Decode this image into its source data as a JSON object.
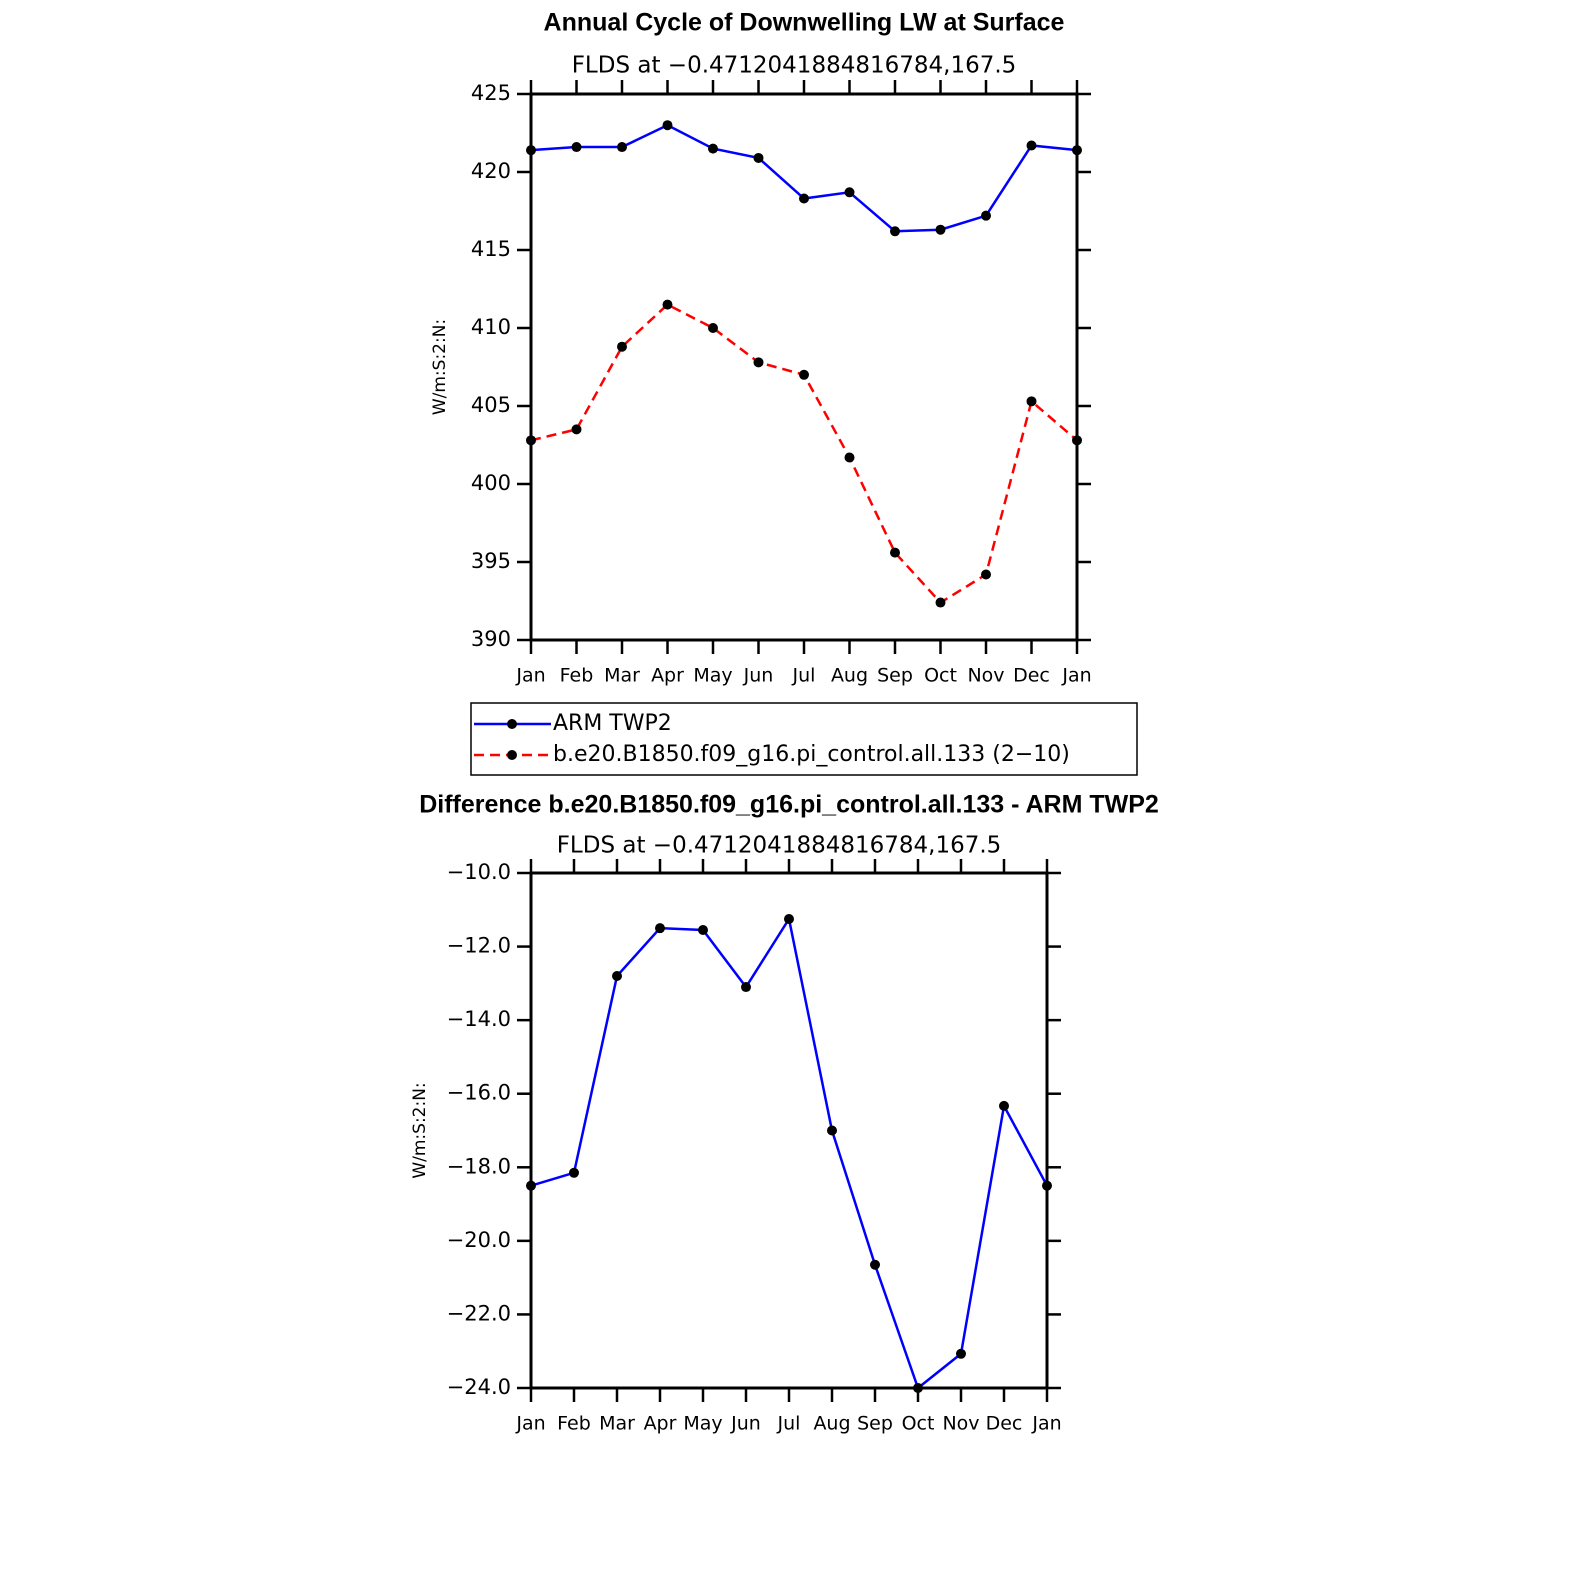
{
  "chart_data": [
    {
      "type": "line",
      "title": "Annual Cycle of Downwelling LW at Surface",
      "subtitle": "FLDS at −0.4712041884816784,167.5",
      "y_label": "W/m:S:2:N:",
      "categories": [
        "Jan",
        "Feb",
        "Mar",
        "Apr",
        "May",
        "Jun",
        "Jul",
        "Aug",
        "Sep",
        "Oct",
        "Nov",
        "Dec",
        "Jan"
      ],
      "series": [
        {
          "name": "ARM TWP2",
          "color": "#0000ff",
          "line_style": "solid",
          "values": [
            421.4,
            421.6,
            421.6,
            423.0,
            421.5,
            420.9,
            418.3,
            418.7,
            416.2,
            416.3,
            417.2,
            421.7,
            421.4
          ]
        },
        {
          "name": "b.e20.B1850.f09_g16.pi_control.all.133 (2−10)",
          "color": "#ff0000",
          "line_style": "dashed",
          "values": [
            402.8,
            403.5,
            408.8,
            411.5,
            410.0,
            407.8,
            407.0,
            401.7,
            395.6,
            392.4,
            394.2,
            405.3,
            402.8
          ]
        }
      ],
      "ylim": [
        390,
        425
      ],
      "yticks": [
        390,
        395,
        400,
        405,
        410,
        415,
        420,
        425
      ]
    },
    {
      "type": "line",
      "title": "Difference b.e20.B1850.f09_g16.pi_control.all.133 - ARM TWP2",
      "subtitle": "FLDS at −0.4712041884816784,167.5",
      "y_label": "W/m:S:2:N:",
      "categories": [
        "Jan",
        "Feb",
        "Mar",
        "Apr",
        "May",
        "Jun",
        "Jul",
        "Aug",
        "Sep",
        "Oct",
        "Nov",
        "Dec",
        "Jan"
      ],
      "series": [
        {
          "color": "#0000ff",
          "line_style": "solid",
          "values": [
            -18.5,
            -18.15,
            -12.8,
            -11.5,
            -11.55,
            -13.1,
            -11.25,
            -17.0,
            -20.65,
            -24.0,
            -23.07,
            -16.33,
            -18.5
          ]
        }
      ],
      "ylim": [
        -24,
        -10
      ],
      "yticks": [
        {
          "value": -24,
          "label": "−24.0"
        },
        {
          "value": -22,
          "label": "−22.0"
        },
        {
          "value": -20,
          "label": "−20.0"
        },
        {
          "value": -18,
          "label": "−18.0"
        },
        {
          "value": -16,
          "label": "−16.0"
        },
        {
          "value": -14,
          "label": "−14.0"
        },
        {
          "value": -12,
          "label": "−12.0"
        },
        {
          "value": -10,
          "label": "−10.0"
        }
      ]
    }
  ]
}
